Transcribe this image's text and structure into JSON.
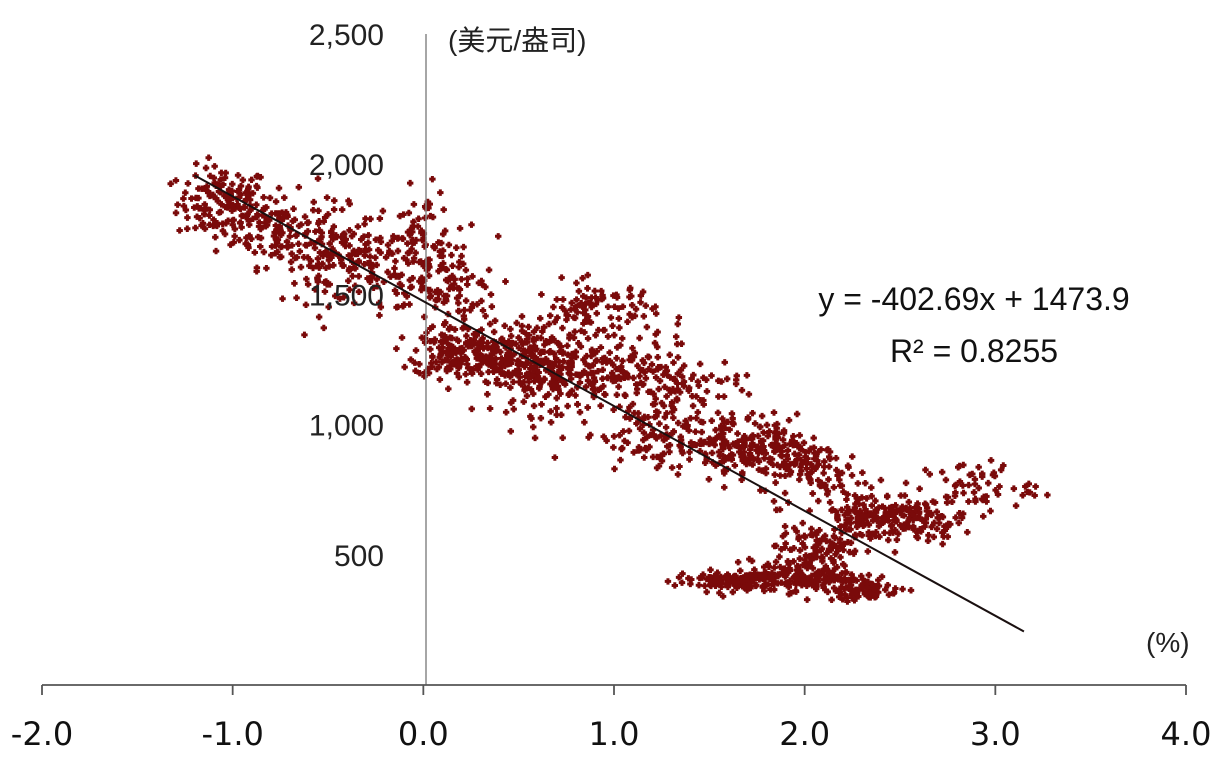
{
  "chart_data": {
    "type": "scatter",
    "title": "",
    "xlabel": "(%)",
    "ylabel": "(美元/盎司)",
    "xlim": [
      -2.0,
      4.0
    ],
    "ylim": [
      0,
      2500
    ],
    "x_ticks": [
      "-2.0",
      "-1.0",
      "0.0",
      "1.0",
      "2.0",
      "3.0",
      "4.0"
    ],
    "y_ticks": [
      "500",
      "1,000",
      "1,500",
      "2,000",
      "2,500"
    ],
    "marker_color": "#7a0a0a",
    "trendline_color": "#1a1010",
    "trendline": {
      "slope": -402.69,
      "intercept": 1473.9,
      "x_range": [
        -1.2,
        3.15
      ],
      "equation": "y = -402.69x + 1473.9",
      "r2_label": "R² = 0.8255"
    },
    "clusters": [
      {
        "x": -1.05,
        "y": 1850,
        "sx": 0.12,
        "sy": 70,
        "n": 150
      },
      {
        "x": -0.75,
        "y": 1750,
        "sx": 0.12,
        "sy": 70,
        "n": 110
      },
      {
        "x": -0.5,
        "y": 1650,
        "sx": 0.12,
        "sy": 90,
        "n": 110
      },
      {
        "x": -0.25,
        "y": 1600,
        "sx": 0.12,
        "sy": 90,
        "n": 80
      },
      {
        "x": 0.0,
        "y": 1680,
        "sx": 0.08,
        "sy": 110,
        "n": 90
      },
      {
        "x": 0.15,
        "y": 1500,
        "sx": 0.12,
        "sy": 110,
        "n": 90
      },
      {
        "x": 0.15,
        "y": 1280,
        "sx": 0.1,
        "sy": 50,
        "n": 110
      },
      {
        "x": 0.4,
        "y": 1250,
        "sx": 0.14,
        "sy": 60,
        "n": 190
      },
      {
        "x": 0.65,
        "y": 1200,
        "sx": 0.14,
        "sy": 80,
        "n": 170
      },
      {
        "x": 0.9,
        "y": 1430,
        "sx": 0.16,
        "sy": 60,
        "n": 110
      },
      {
        "x": 1.0,
        "y": 1200,
        "sx": 0.2,
        "sy": 60,
        "n": 120
      },
      {
        "x": 1.3,
        "y": 1130,
        "sx": 0.18,
        "sy": 70,
        "n": 100
      },
      {
        "x": 1.2,
        "y": 950,
        "sx": 0.2,
        "sy": 50,
        "n": 80
      },
      {
        "x": 1.6,
        "y": 920,
        "sx": 0.18,
        "sy": 60,
        "n": 130
      },
      {
        "x": 1.85,
        "y": 890,
        "sx": 0.16,
        "sy": 60,
        "n": 120
      },
      {
        "x": 2.1,
        "y": 800,
        "sx": 0.14,
        "sy": 60,
        "n": 60
      },
      {
        "x": 2.35,
        "y": 650,
        "sx": 0.14,
        "sy": 50,
        "n": 140
      },
      {
        "x": 2.6,
        "y": 630,
        "sx": 0.12,
        "sy": 40,
        "n": 80
      },
      {
        "x": 2.9,
        "y": 760,
        "sx": 0.15,
        "sy": 50,
        "n": 60
      },
      {
        "x": 2.05,
        "y": 530,
        "sx": 0.1,
        "sy": 40,
        "n": 80
      },
      {
        "x": 1.6,
        "y": 400,
        "sx": 0.14,
        "sy": 20,
        "n": 120
      },
      {
        "x": 2.0,
        "y": 420,
        "sx": 0.14,
        "sy": 30,
        "n": 160
      },
      {
        "x": 2.3,
        "y": 370,
        "sx": 0.1,
        "sy": 25,
        "n": 80
      }
    ]
  }
}
